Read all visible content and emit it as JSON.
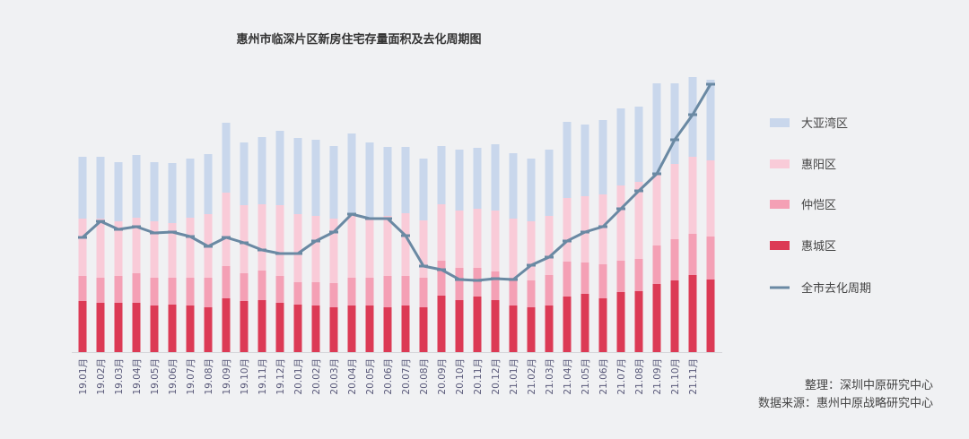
{
  "chart_data": {
    "type": "bar",
    "stacked": true,
    "title": "惠州市临深片区新房住宅存量面积及去化周期图",
    "xlabel": "",
    "ylabel": "",
    "note": "relative units, no axis shown",
    "categories": [
      "19.01月",
      "19.02月",
      "19.03月",
      "19.04月",
      "19.05月",
      "19.06月",
      "19.07月",
      "19.08月",
      "19.09月",
      "19.10月",
      "19.11月",
      "19.12月",
      "20.01月",
      "20.02月",
      "20.03月",
      "20.04月",
      "20.05月",
      "20.06月",
      "20.07月",
      "20.08月",
      "20.09月",
      "20.10月",
      "20.11月",
      "20.12月",
      "21.01月",
      "21.02月",
      "21.03月",
      "21.04月",
      "21.05月",
      "21.06月",
      "21.07月",
      "21.08月",
      "21.09月",
      "21.10月",
      "21.11月",
      ""
    ],
    "series": [
      {
        "name": "惠城区",
        "color": "#dc3a55",
        "values": [
          57,
          55,
          55,
          55,
          52,
          53,
          52,
          50,
          60,
          57,
          58,
          55,
          53,
          52,
          50,
          52,
          52,
          50,
          52,
          50,
          63,
          58,
          62,
          58,
          52,
          50,
          52,
          62,
          65,
          60,
          67,
          68,
          76,
          80,
          86,
          81
        ]
      },
      {
        "name": "仲恺区",
        "color": "#f4a0b5",
        "values": [
          28,
          28,
          30,
          33,
          31,
          30,
          31,
          33,
          36,
          31,
          33,
          30,
          25,
          26,
          27,
          31,
          31,
          35,
          33,
          33,
          39,
          36,
          32,
          32,
          31,
          30,
          34,
          39,
          35,
          38,
          35,
          36,
          43,
          46,
          46,
          48
        ]
      },
      {
        "name": "惠阳区",
        "color": "#f9cbd8",
        "values": [
          64,
          66,
          61,
          62,
          63,
          61,
          67,
          71,
          82,
          76,
          74,
          79,
          76,
          74,
          72,
          72,
          66,
          67,
          70,
          64,
          63,
          64,
          66,
          68,
          66,
          66,
          66,
          71,
          74,
          78,
          84,
          86,
          81,
          84,
          86,
          85
        ]
      },
      {
        "name": "大亚湾区",
        "color": "#c9d7ec",
        "values": [
          69,
          69,
          66,
          70,
          66,
          67,
          66,
          67,
          78,
          70,
          75,
          83,
          85,
          85,
          81,
          89,
          85,
          77,
          74,
          69,
          65,
          68,
          68,
          74,
          73,
          70,
          74,
          85,
          80,
          83,
          86,
          84,
          100,
          90,
          89,
          90
        ]
      }
    ],
    "line": {
      "name": "全市去化周期",
      "color": "#6a89a3",
      "values": [
        128,
        146,
        137,
        140,
        133,
        134,
        129,
        118,
        128,
        122,
        114,
        110,
        110,
        124,
        134,
        154,
        149,
        149,
        130,
        96,
        92,
        81,
        80,
        82,
        81,
        97,
        106,
        124,
        134,
        140,
        160,
        180,
        199,
        237,
        265,
        299
      ]
    },
    "legend_position": "right",
    "grid": false
  },
  "footer": {
    "line1": "整理：深圳中原研究中心",
    "line2": "数据来源：惠州中原战略研究中心"
  }
}
